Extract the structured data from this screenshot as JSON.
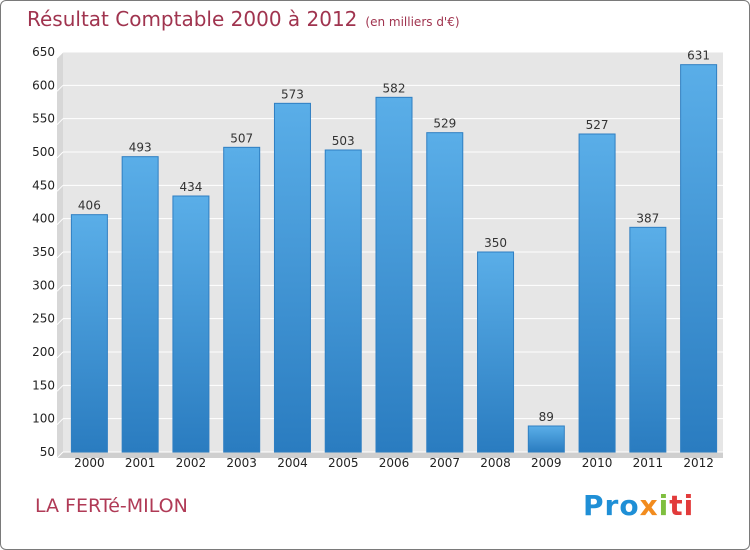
{
  "header": {
    "title": "Résultat Comptable 2000 à 2012",
    "subtitle": "(en milliers d'€)"
  },
  "footer": {
    "town": "LA FERTé-MILON",
    "logo_parts": [
      "Pro",
      "x",
      "i",
      "ti"
    ]
  },
  "colors": {
    "bar_top": "#5aaee8",
    "bar_bottom": "#2a7cc0",
    "plot_bg": "#e6e6e6",
    "grid": "#ffffff",
    "title": "#a0344f"
  },
  "chart_data": {
    "type": "bar",
    "title": "Résultat Comptable 2000 à 2012",
    "subtitle": "(en milliers d'€)",
    "categories": [
      "2000",
      "2001",
      "2002",
      "2003",
      "2004",
      "2005",
      "2006",
      "2007",
      "2008",
      "2009",
      "2010",
      "2011",
      "2012"
    ],
    "values": [
      406,
      493,
      434,
      507,
      573,
      503,
      582,
      529,
      350,
      89,
      527,
      387,
      631
    ],
    "xlabel": "",
    "ylabel": "",
    "ylim": [
      50,
      650
    ],
    "yticks": [
      50,
      100,
      150,
      200,
      250,
      300,
      350,
      400,
      450,
      500,
      550,
      600,
      650
    ],
    "grid": true,
    "data_labels": true
  }
}
